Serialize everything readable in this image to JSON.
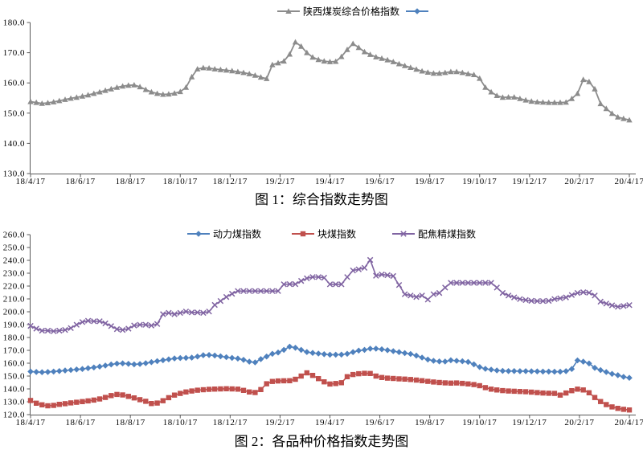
{
  "page": {
    "background": "#ffffff"
  },
  "chart_data": [
    {
      "id": "figure-1",
      "type": "line",
      "title": "图 1：综合指数走势图",
      "xlabel": "",
      "ylabel": "",
      "ylim": [
        130,
        180
      ],
      "grid": false,
      "legend_position": "top-center",
      "yticks": [
        "180.0",
        "170.0",
        "160.0",
        "150.0",
        "140.0",
        "130.0"
      ],
      "x_tick_labels": [
        "18/4/17",
        "18/6/17",
        "18/8/17",
        "18/10/17",
        "18/12/17",
        "19/2/17",
        "19/4/17",
        "19/6/17",
        "19/8/17",
        "19/10/17",
        "19/12/17",
        "20/2/17",
        "20/4/17"
      ],
      "series": [
        {
          "name": "陕西煤炭综合价格指数",
          "color": "#8C8C8C",
          "marker": "triangle",
          "values": [
            153.8,
            153.5,
            153.2,
            153.4,
            153.7,
            154.1,
            154.5,
            154.9,
            155.2,
            155.6,
            156.0,
            156.5,
            157.0,
            157.5,
            158.0,
            158.5,
            158.9,
            159.2,
            159.3,
            158.7,
            157.8,
            157.0,
            156.5,
            156.2,
            156.3,
            156.6,
            157.1,
            158.5,
            162.0,
            164.6,
            165.0,
            164.9,
            164.6,
            164.4,
            164.2,
            164.0,
            163.7,
            163.4,
            163.0,
            162.5,
            161.9,
            161.4,
            166.0,
            166.6,
            167.2,
            169.5,
            173.5,
            172.1,
            170.0,
            168.5,
            167.7,
            167.2,
            167.0,
            167.1,
            168.7,
            171.0,
            173.0,
            171.7,
            170.3,
            169.4,
            168.6,
            168.1,
            167.6,
            167.0,
            166.3,
            165.7,
            165.1,
            164.5,
            163.9,
            163.5,
            163.2,
            163.2,
            163.4,
            163.7,
            163.7,
            163.4,
            163.0,
            162.7,
            161.5,
            158.5,
            157.0,
            155.8,
            155.2,
            155.3,
            155.3,
            154.8,
            154.3,
            153.9,
            153.7,
            153.6,
            153.5,
            153.5,
            153.5,
            153.6,
            154.8,
            156.5,
            161.1,
            160.4,
            158.0,
            153.1,
            151.5,
            149.9,
            148.7,
            148.2,
            147.7
          ]
        },
        {
          "name": "",
          "color": "#4F81BD",
          "marker": "diamond",
          "values": []
        }
      ]
    },
    {
      "id": "figure-2",
      "type": "line",
      "title": "图 2：各品种价格指数走势图",
      "xlabel": "",
      "ylabel": "",
      "ylim": [
        120,
        260
      ],
      "grid": false,
      "legend_position": "top-center",
      "yticks": [
        "260.0",
        "250.0",
        "240.0",
        "230.0",
        "220.0",
        "210.0",
        "200.0",
        "190.0",
        "180.0",
        "170.0",
        "160.0",
        "150.0",
        "140.0",
        "130.0",
        "120.0"
      ],
      "x_tick_labels": [
        "18/4/17",
        "18/6/17",
        "18/8/17",
        "18/10/17",
        "18/12/17",
        "19/2/17",
        "19/4/17",
        "19/6/17",
        "19/8/17",
        "19/10/17",
        "19/12/17",
        "20/2/17",
        "20/4/17"
      ],
      "series": [
        {
          "name": "动力煤指数",
          "color": "#4F81BD",
          "marker": "diamond",
          "values": [
            153.5,
            153.2,
            153.0,
            153.2,
            153.5,
            153.9,
            154.3,
            154.7,
            155.1,
            155.5,
            156.1,
            156.7,
            157.4,
            158.2,
            159.0,
            159.7,
            159.9,
            159.5,
            159.1,
            159.4,
            160.0,
            160.8,
            161.6,
            162.3,
            163.0,
            163.7,
            164.0,
            164.1,
            164.3,
            165.2,
            166.2,
            166.4,
            166.0,
            165.4,
            164.7,
            164.1,
            163.6,
            162.6,
            161.2,
            160.6,
            163.2,
            165.2,
            167.3,
            168.3,
            170.4,
            172.9,
            172.0,
            170.4,
            168.7,
            168.0,
            167.5,
            167.0,
            166.6,
            166.6,
            166.7,
            167.3,
            168.6,
            169.8,
            170.4,
            171.3,
            171.3,
            170.8,
            170.1,
            169.4,
            168.6,
            167.9,
            167.2,
            165.9,
            164.4,
            162.9,
            161.9,
            161.4,
            161.3,
            162.3,
            161.9,
            161.5,
            161.0,
            159.1,
            157.0,
            155.6,
            155.0,
            154.4,
            154.0,
            153.9,
            153.9,
            153.8,
            153.8,
            153.7,
            153.6,
            153.5,
            153.5,
            153.4,
            153.4,
            153.8,
            155.5,
            162.2,
            161.2,
            159.8,
            156.4,
            154.6,
            153.1,
            151.7,
            150.7,
            149.4,
            148.6
          ]
        },
        {
          "name": "块煤指数",
          "color": "#C0504D",
          "marker": "square",
          "values": [
            131.0,
            128.9,
            127.6,
            126.9,
            127.2,
            128.0,
            128.5,
            129.1,
            129.6,
            130.1,
            130.7,
            131.3,
            132.2,
            133.4,
            134.8,
            135.7,
            135.3,
            134.2,
            133.0,
            131.6,
            130.4,
            128.6,
            129.0,
            130.8,
            133.2,
            135.2,
            136.5,
            137.6,
            138.4,
            139.0,
            139.4,
            139.7,
            139.9,
            140.0,
            140.1,
            140.0,
            139.8,
            138.9,
            137.6,
            137.2,
            139.5,
            144.0,
            145.8,
            146.2,
            146.3,
            146.4,
            147.5,
            150.0,
            152.5,
            150.5,
            148.0,
            145.5,
            143.8,
            144.2,
            144.8,
            149.5,
            151.2,
            151.8,
            152.1,
            152.0,
            150.0,
            148.9,
            148.4,
            148.1,
            147.8,
            147.6,
            147.3,
            146.9,
            146.4,
            145.9,
            145.4,
            145.0,
            144.7,
            144.5,
            144.6,
            144.3,
            143.9,
            143.4,
            142.5,
            141.0,
            139.8,
            139.2,
            138.7,
            138.4,
            138.2,
            138.0,
            137.8,
            137.5,
            137.1,
            136.8,
            136.6,
            136.5,
            135.2,
            136.8,
            138.6,
            139.8,
            139.2,
            137.0,
            133.3,
            130.2,
            127.8,
            126.0,
            124.9,
            124.1,
            123.6
          ]
        },
        {
          "name": "配焦精煤指数",
          "color": "#8064A2",
          "marker": "xcross",
          "values": [
            189.0,
            186.9,
            185.3,
            185.3,
            184.9,
            185.3,
            185.9,
            187.3,
            189.9,
            192.0,
            193.0,
            192.6,
            192.6,
            191.0,
            188.9,
            186.5,
            185.9,
            186.9,
            189.3,
            189.9,
            189.9,
            189.3,
            190.5,
            198.1,
            199.1,
            198.1,
            199.1,
            200.2,
            199.5,
            199.5,
            199.1,
            200.2,
            205.3,
            208.4,
            211.5,
            214.0,
            216.1,
            216.1,
            216.1,
            216.1,
            216.1,
            216.1,
            216.1,
            216.1,
            221.4,
            221.5,
            221.5,
            224.0,
            226.0,
            227.0,
            227.0,
            226.5,
            221.4,
            221.4,
            221.4,
            227.0,
            232.1,
            233.0,
            234.2,
            240.3,
            228.0,
            229.0,
            228.5,
            227.8,
            220.8,
            213.6,
            212.6,
            211.5,
            212.6,
            209.5,
            213.6,
            214.6,
            218.8,
            222.5,
            222.5,
            222.5,
            222.5,
            222.5,
            222.5,
            222.5,
            222.5,
            218.8,
            214.6,
            212.6,
            211.2,
            209.9,
            209.1,
            208.5,
            208.3,
            208.3,
            208.5,
            209.9,
            210.5,
            211.2,
            213.0,
            214.6,
            215.2,
            214.8,
            212.6,
            207.9,
            206.4,
            205.0,
            203.9,
            204.5,
            205.2
          ]
        }
      ]
    }
  ]
}
